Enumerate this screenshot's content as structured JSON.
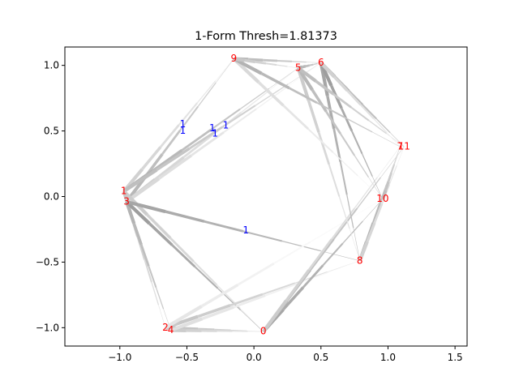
{
  "chart_data": {
    "type": "scatter",
    "title": "1-Form Thresh=1.81373",
    "xlabel": "",
    "ylabel": "",
    "xlim": [
      -1.41,
      1.59
    ],
    "ylim": [
      -1.14,
      1.14
    ],
    "xticks": [
      -1.0,
      -0.5,
      0.0,
      0.5,
      1.0,
      1.5
    ],
    "xtick_labels": [
      "−1.0",
      "−0.5",
      "0.0",
      "0.5",
      "1.0",
      "1.5"
    ],
    "yticks": [
      -1.0,
      -0.5,
      0.0,
      0.5,
      1.0
    ],
    "ytick_labels": [
      "−1.0",
      "−0.5",
      "0.0",
      "0.5",
      "1.0"
    ],
    "grid": false,
    "node_color": "#ff0000",
    "edge_label_color": "#0000ff",
    "nodes": [
      {
        "label": "0",
        "x": 0.07,
        "y": -1.03
      },
      {
        "label": "1",
        "x": -0.97,
        "y": 0.04
      },
      {
        "label": "2",
        "x": -0.66,
        "y": -1.0
      },
      {
        "label": "3",
        "x": -0.95,
        "y": -0.04
      },
      {
        "label": "4",
        "x": -0.62,
        "y": -1.02
      },
      {
        "label": "5",
        "x": 0.33,
        "y": 0.98
      },
      {
        "label": "6",
        "x": 0.5,
        "y": 1.02
      },
      {
        "label": "7",
        "x": 1.09,
        "y": 0.38
      },
      {
        "label": "8",
        "x": 0.79,
        "y": -0.49
      },
      {
        "label": "9",
        "x": -0.15,
        "y": 1.05
      },
      {
        "label": "10",
        "x": 0.96,
        "y": -0.02
      },
      {
        "label": "11",
        "x": 1.12,
        "y": 0.38
      }
    ],
    "edges": [
      {
        "from": "1",
        "to": "9",
        "shade": 0.82
      },
      {
        "from": "3",
        "to": "9",
        "shade": 0.72
      },
      {
        "from": "1",
        "to": "5",
        "shade": 0.7
      },
      {
        "from": "3",
        "to": "5",
        "shade": 0.82
      },
      {
        "from": "1",
        "to": "6",
        "shade": 0.75
      },
      {
        "from": "3",
        "to": "6",
        "shade": 0.85
      },
      {
        "from": "1",
        "to": "2",
        "shade": 0.78
      },
      {
        "from": "3",
        "to": "4",
        "shade": 0.7
      },
      {
        "from": "1",
        "to": "0",
        "shade": 0.8
      },
      {
        "from": "3",
        "to": "0",
        "shade": 0.62
      },
      {
        "from": "3",
        "to": "8",
        "shade": 0.65
      },
      {
        "from": "2",
        "to": "0",
        "shade": 0.75
      },
      {
        "from": "4",
        "to": "0",
        "shade": 0.8
      },
      {
        "from": "2",
        "to": "8",
        "shade": 0.78
      },
      {
        "from": "4",
        "to": "8",
        "shade": 0.88
      },
      {
        "from": "2",
        "to": "10",
        "shade": 0.9
      },
      {
        "from": "0",
        "to": "10",
        "shade": 0.65
      },
      {
        "from": "0",
        "to": "11",
        "shade": 0.7
      },
      {
        "from": "0",
        "to": "7",
        "shade": 0.8
      },
      {
        "from": "8",
        "to": "7",
        "shade": 0.68
      },
      {
        "from": "8",
        "to": "11",
        "shade": 0.82
      },
      {
        "from": "5",
        "to": "8",
        "shade": 0.8
      },
      {
        "from": "6",
        "to": "8",
        "shade": 0.65
      },
      {
        "from": "5",
        "to": "10",
        "shade": 0.72
      },
      {
        "from": "6",
        "to": "10",
        "shade": 0.62
      },
      {
        "from": "9",
        "to": "10",
        "shade": 0.85
      },
      {
        "from": "9",
        "to": "7",
        "shade": 0.7
      },
      {
        "from": "9",
        "to": "6",
        "shade": 0.72
      },
      {
        "from": "9",
        "to": "5",
        "shade": 0.78
      },
      {
        "from": "5",
        "to": "6",
        "shade": 0.7
      },
      {
        "from": "5",
        "to": "11",
        "shade": 0.75
      },
      {
        "from": "6",
        "to": "11",
        "shade": 0.68
      },
      {
        "from": "6",
        "to": "7",
        "shade": 0.82
      },
      {
        "from": "10",
        "to": "7",
        "shade": 0.75
      }
    ],
    "edge_labels": [
      {
        "text": "1",
        "x": -0.53,
        "y": 0.55
      },
      {
        "text": "1",
        "x": -0.53,
        "y": 0.5
      },
      {
        "text": "1",
        "x": -0.31,
        "y": 0.52
      },
      {
        "text": "1",
        "x": -0.29,
        "y": 0.48
      },
      {
        "text": "1",
        "x": -0.21,
        "y": 0.54
      },
      {
        "text": "1",
        "x": -0.06,
        "y": -0.26
      }
    ]
  }
}
